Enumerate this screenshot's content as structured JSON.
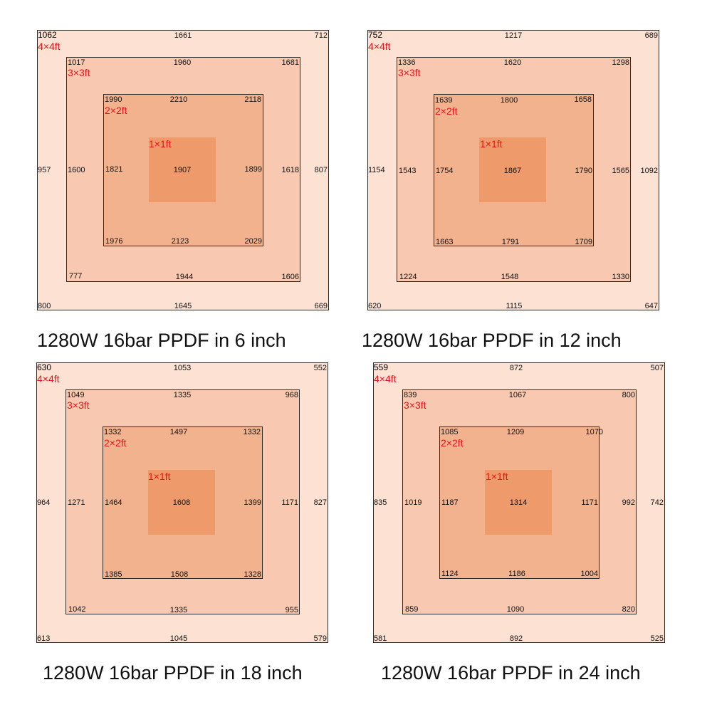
{
  "colors": {
    "ring_4x4": "#fde2d3",
    "ring_3x3": "#f8c9b0",
    "ring_2x2": "#f2b28e",
    "center_1x1": "#ee9a6a",
    "label": "#e8141a",
    "border": "#2a2a2a"
  },
  "panels": [
    {
      "caption": "1280W 16bar PPDF in 6 inch",
      "s4": {
        "label": "4×4ft",
        "tl": "1062",
        "tm": "1661",
        "tr": "712",
        "ml": "957",
        "mr": "807",
        "bl": "800",
        "bm": "1645",
        "br": "669"
      },
      "s3": {
        "label": "3×3ft",
        "tl": "1017",
        "tm": "1960",
        "tr": "1681",
        "ml": "1600",
        "mr": "1618",
        "bl": "777",
        "bm": "1944",
        "br": "1606"
      },
      "s2": {
        "label": "2×2ft",
        "tl": "1990",
        "tm": "2210",
        "tr": "2118",
        "ml": "1821",
        "mr": "1899",
        "bl": "1976",
        "bm": "2123",
        "br": "2029"
      },
      "s1": {
        "label": "1×1ft",
        "c": "1907"
      }
    },
    {
      "caption": "1280W 16bar PPDF in 12 inch",
      "s4": {
        "label": "4×4ft",
        "tl": "752",
        "tm": "1217",
        "tr": "689",
        "ml": "1154",
        "mr": "1092",
        "bl": "620",
        "bm": "1115",
        "br": "647"
      },
      "s3": {
        "label": "3×3ft",
        "tl": "1336",
        "tm": "1620",
        "tr": "1298",
        "ml": "1543",
        "mr": "1565",
        "bl": "1224",
        "bm": "1548",
        "br": "1330"
      },
      "s2": {
        "label": "2×2ft",
        "tl": "1639",
        "tm": "1800",
        "tr": "1658",
        "ml": "1754",
        "mr": "1790",
        "bl": "1663",
        "bm": "1791",
        "br": "1709"
      },
      "s1": {
        "label": "1×1ft",
        "c": "1867"
      }
    },
    {
      "caption": "1280W 16bar PPDF in 18 inch",
      "s4": {
        "label": "4×4ft",
        "tl": "630",
        "tm": "1053",
        "tr": "552",
        "ml": "964",
        "mr": "827",
        "bl": "613",
        "bm": "1045",
        "br": "579"
      },
      "s3": {
        "label": "3×3ft",
        "tl": "1049",
        "tm": "1335",
        "tr": "968",
        "ml": "1271",
        "mr": "1171",
        "bl": "1042",
        "bm": "1335",
        "br": "955"
      },
      "s2": {
        "label": "2×2ft",
        "tl": "1332",
        "tm": "1497",
        "tr": "1332",
        "ml": "1464",
        "mr": "1399",
        "bl": "1385",
        "bm": "1508",
        "br": "1328"
      },
      "s1": {
        "label": "1×1ft",
        "c": "1608"
      }
    },
    {
      "caption": "1280W 16bar PPDF in 24 inch",
      "s4": {
        "label": "4×4ft",
        "tl": "559",
        "tm": "872",
        "tr": "507",
        "ml": "835",
        "mr": "742",
        "bl": "581",
        "bm": "892",
        "br": "525"
      },
      "s3": {
        "label": "3×3ft",
        "tl": "839",
        "tm": "1067",
        "tr": "800",
        "ml": "1019",
        "mr": "992",
        "bl": "859",
        "bm": "1090",
        "br": "820"
      },
      "s2": {
        "label": "2×2ft",
        "tl": "1085",
        "tm": "1209",
        "tr": "1070",
        "ml": "1187",
        "mr": "1171",
        "bl": "1124",
        "bm": "1186",
        "br": "1004"
      },
      "s1": {
        "label": "1×1ft",
        "c": "1314"
      }
    }
  ]
}
